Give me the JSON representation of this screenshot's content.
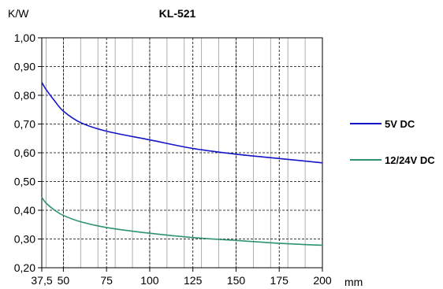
{
  "chart_data": {
    "type": "line",
    "title": "KL-521",
    "ylabel": "K/W",
    "xlabel": "mm",
    "xlim": [
      37.5,
      200
    ],
    "ylim": [
      0.2,
      1.0
    ],
    "x_ticks": [
      37.5,
      50,
      75,
      100,
      125,
      150,
      175,
      200
    ],
    "x_tick_labels": [
      "37,5",
      "50",
      "75",
      "100",
      "125",
      "150",
      "175",
      "200"
    ],
    "y_ticks": [
      0.2,
      0.3,
      0.4,
      0.5,
      0.6,
      0.7,
      0.8,
      0.9,
      1.0
    ],
    "y_tick_labels": [
      "0,20",
      "0,30",
      "0,40",
      "0,50",
      "0,60",
      "0,70",
      "0,80",
      "0,90",
      "1,00"
    ],
    "x_minor_step": 10,
    "grid": true,
    "legend_position": "right",
    "series": [
      {
        "name": "5V DC",
        "color": "#1515c8",
        "x": [
          37.5,
          40,
          45,
          50,
          60,
          75,
          100,
          125,
          150,
          175,
          200
        ],
        "y": [
          0.845,
          0.82,
          0.78,
          0.745,
          0.705,
          0.675,
          0.645,
          0.615,
          0.595,
          0.58,
          0.565
        ]
      },
      {
        "name": "12/24V DC",
        "color": "#2e9370",
        "x": [
          37.5,
          40,
          45,
          50,
          60,
          75,
          100,
          125,
          150,
          175,
          200
        ],
        "y": [
          0.445,
          0.425,
          0.4,
          0.382,
          0.36,
          0.34,
          0.32,
          0.305,
          0.295,
          0.285,
          0.278
        ]
      }
    ]
  }
}
